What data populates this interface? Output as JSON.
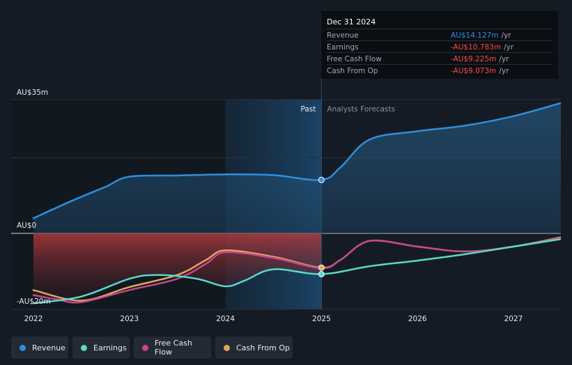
{
  "chart_data": {
    "type": "line",
    "title": "",
    "xlabel": "",
    "ylabel": "",
    "x_ticks": [
      "2022",
      "2023",
      "2024",
      "2025",
      "2026",
      "2027"
    ],
    "y_axis_labels": {
      "top": "AU$35m",
      "zero": "AU$0",
      "bottom": "-AU$20m"
    },
    "ylim": [
      -20,
      35
    ],
    "regions": {
      "past": "Past",
      "forecast": "Analysts Forecasts"
    },
    "series": [
      {
        "name": "Revenue",
        "color": "#2f8fde",
        "points": [
          [
            2022,
            4
          ],
          [
            2022.4,
            8.6
          ],
          [
            2022.75,
            12.3
          ],
          [
            2023,
            15
          ],
          [
            2023.5,
            15.3
          ],
          [
            2024,
            15.6
          ],
          [
            2024.5,
            15.4
          ],
          [
            2025,
            14.13
          ],
          [
            2025.2,
            17.5
          ],
          [
            2025.5,
            24.8
          ],
          [
            2026,
            27
          ],
          [
            2026.5,
            28.5
          ],
          [
            2027,
            31
          ],
          [
            2027.5,
            34.5
          ]
        ]
      },
      {
        "name": "Earnings",
        "color": "#5ad8c9",
        "points": [
          [
            2022,
            -18.5
          ],
          [
            2022.5,
            -16.7
          ],
          [
            2023,
            -12
          ],
          [
            2023.3,
            -11
          ],
          [
            2023.7,
            -12
          ],
          [
            2024,
            -14
          ],
          [
            2024.2,
            -12.5
          ],
          [
            2024.5,
            -9.5
          ],
          [
            2025,
            -10.78
          ],
          [
            2025.5,
            -8.7
          ],
          [
            2026,
            -7.2
          ],
          [
            2026.5,
            -5.5
          ],
          [
            2027,
            -3.5
          ],
          [
            2027.5,
            -1.5
          ]
        ]
      },
      {
        "name": "Free Cash Flow",
        "color": "#c8458e",
        "points": [
          [
            2022,
            -16.3
          ],
          [
            2022.25,
            -17.5
          ],
          [
            2022.5,
            -18.2
          ],
          [
            2023,
            -15
          ],
          [
            2023.5,
            -12
          ],
          [
            2023.8,
            -8
          ],
          [
            2024,
            -5
          ],
          [
            2024.5,
            -6.5
          ],
          [
            2025,
            -9.23
          ],
          [
            2025.2,
            -7
          ],
          [
            2025.5,
            -2
          ],
          [
            2026,
            -3.5
          ],
          [
            2026.5,
            -4.8
          ],
          [
            2027,
            -3.5
          ],
          [
            2027.5,
            -1.2
          ]
        ]
      },
      {
        "name": "Cash From Op",
        "color": "#e2a65b",
        "points": [
          [
            2022,
            -15
          ],
          [
            2022.5,
            -17.8
          ],
          [
            2023,
            -14.2
          ],
          [
            2023.5,
            -11
          ],
          [
            2023.8,
            -7
          ],
          [
            2024,
            -4.5
          ],
          [
            2024.5,
            -6.2
          ],
          [
            2025,
            -9.07
          ],
          [
            2025.2,
            -7
          ],
          [
            2025.5,
            -2
          ],
          [
            2026,
            -3.5
          ],
          [
            2026.5,
            -4.8
          ],
          [
            2027,
            -3.5
          ],
          [
            2027.5,
            -1
          ]
        ]
      }
    ]
  },
  "tooltip": {
    "date": "Dec 31 2024",
    "rows": [
      {
        "label": "Revenue",
        "value": "AU$14.127m",
        "unit": "/yr",
        "color": "#2f8fde"
      },
      {
        "label": "Earnings",
        "value": "-AU$10.783m",
        "unit": "/yr",
        "color": "#ff4747"
      },
      {
        "label": "Free Cash Flow",
        "value": "-AU$9.225m",
        "unit": "/yr",
        "color": "#ff4747"
      },
      {
        "label": "Cash From Op",
        "value": "-AU$9.073m",
        "unit": "/yr",
        "color": "#ff4747"
      }
    ]
  },
  "legend": [
    {
      "label": "Revenue",
      "color": "#2f8fde"
    },
    {
      "label": "Earnings",
      "color": "#5ad8c9"
    },
    {
      "label": "Free Cash Flow",
      "color": "#c8458e"
    },
    {
      "label": "Cash From Op",
      "color": "#e2a65b"
    }
  ]
}
